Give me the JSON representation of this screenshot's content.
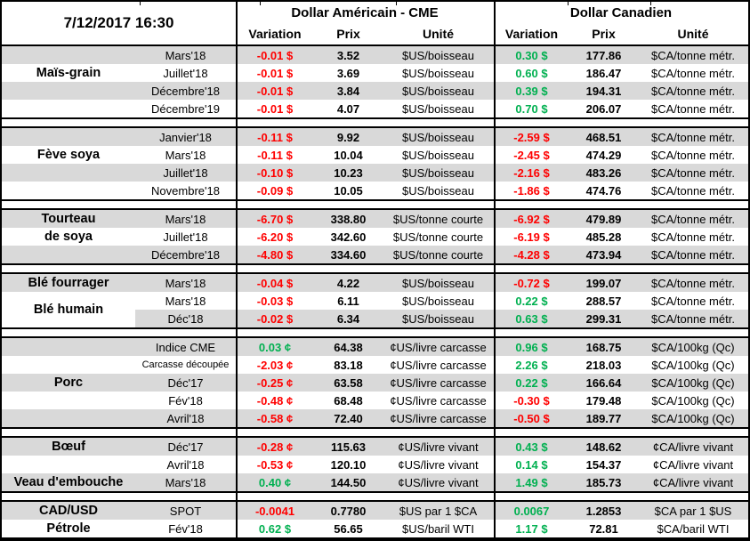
{
  "colors": {
    "negative": "#FF0000",
    "positive": "#00B050",
    "row_stripe": "#D9D9D9",
    "border": "#000000"
  },
  "chart_data": {
    "type": "table",
    "header": {
      "date": "7/12/2017 16:30",
      "us_title": "Dollar Américain - CME",
      "ca_title": "Dollar Canadien",
      "cols": [
        "Variation",
        "Prix",
        "Unité"
      ]
    },
    "groups": [
      {
        "rows": [
          {
            "label": "",
            "contract": "Mars'18",
            "us": {
              "variation": "-0.01 $",
              "prix": "3.52",
              "unite": "$US/boisseau"
            },
            "ca": {
              "variation": "0.30 $",
              "prix": "177.86",
              "unite": "$CA/tonne métr."
            }
          },
          {
            "label": "Maïs-grain",
            "contract": "Juillet'18",
            "us": {
              "variation": "-0.01 $",
              "prix": "3.69",
              "unite": "$US/boisseau"
            },
            "ca": {
              "variation": "0.60 $",
              "prix": "186.47",
              "unite": "$CA/tonne métr."
            }
          },
          {
            "label": "",
            "contract": "Décembre'18",
            "us": {
              "variation": "-0.01 $",
              "prix": "3.84",
              "unite": "$US/boisseau"
            },
            "ca": {
              "variation": "0.39 $",
              "prix": "194.31",
              "unite": "$CA/tonne métr."
            }
          },
          {
            "label": "",
            "contract": "Décembre'19",
            "us": {
              "variation": "-0.01 $",
              "prix": "4.07",
              "unite": "$US/boisseau"
            },
            "ca": {
              "variation": "0.70 $",
              "prix": "206.07",
              "unite": "$CA/tonne métr."
            }
          }
        ]
      },
      {
        "rows": [
          {
            "label": "",
            "contract": "Janvier'18",
            "us": {
              "variation": "-0.11 $",
              "prix": "9.92",
              "unite": "$US/boisseau"
            },
            "ca": {
              "variation": "-2.59 $",
              "prix": "468.51",
              "unite": "$CA/tonne métr."
            }
          },
          {
            "label": "Fève soya",
            "contract": "Mars'18",
            "us": {
              "variation": "-0.11 $",
              "prix": "10.04",
              "unite": "$US/boisseau"
            },
            "ca": {
              "variation": "-2.45 $",
              "prix": "474.29",
              "unite": "$CA/tonne métr."
            }
          },
          {
            "label": "",
            "contract": "Juillet'18",
            "us": {
              "variation": "-0.10 $",
              "prix": "10.23",
              "unite": "$US/boisseau"
            },
            "ca": {
              "variation": "-2.16 $",
              "prix": "483.26",
              "unite": "$CA/tonne métr."
            }
          },
          {
            "label": "",
            "contract": "Novembre'18",
            "us": {
              "variation": "-0.09 $",
              "prix": "10.05",
              "unite": "$US/boisseau"
            },
            "ca": {
              "variation": "-1.86 $",
              "prix": "474.76",
              "unite": "$CA/tonne métr."
            }
          }
        ]
      },
      {
        "rows": [
          {
            "label": "Tourteau",
            "contract": "Mars'18",
            "us": {
              "variation": "-6.70 $",
              "prix": "338.80",
              "unite": "$US/tonne courte"
            },
            "ca": {
              "variation": "-6.92 $",
              "prix": "479.89",
              "unite": "$CA/tonne métr."
            }
          },
          {
            "label": "de soya",
            "contract": "Juillet'18",
            "us": {
              "variation": "-6.20 $",
              "prix": "342.60",
              "unite": "$US/tonne courte"
            },
            "ca": {
              "variation": "-6.19 $",
              "prix": "485.28",
              "unite": "$CA/tonne métr."
            }
          },
          {
            "label": "",
            "contract": "Décembre'18",
            "us": {
              "variation": "-4.80 $",
              "prix": "334.60",
              "unite": "$US/tonne courte"
            },
            "ca": {
              "variation": "-4.28 $",
              "prix": "473.94",
              "unite": "$CA/tonne métr."
            }
          }
        ]
      },
      {
        "rows": [
          {
            "label": "Blé fourrager",
            "contract": "Mars'18",
            "us": {
              "variation": "-0.04 $",
              "prix": "4.22",
              "unite": "$US/boisseau"
            },
            "ca": {
              "variation": "-0.72 $",
              "prix": "199.07",
              "unite": "$CA/tonne métr."
            }
          },
          {
            "label": "Blé humain",
            "label_span": 2,
            "contract": "Mars'18",
            "us": {
              "variation": "-0.03 $",
              "prix": "6.11",
              "unite": "$US/boisseau"
            },
            "ca": {
              "variation": "0.22 $",
              "prix": "288.57",
              "unite": "$CA/tonne métr."
            }
          },
          {
            "label": "",
            "contract": "Déc'18",
            "us": {
              "variation": "-0.02 $",
              "prix": "6.34",
              "unite": "$US/boisseau"
            },
            "ca": {
              "variation": "0.63 $",
              "prix": "299.31",
              "unite": "$CA/tonne métr."
            }
          }
        ]
      },
      {
        "rows": [
          {
            "label": "",
            "contract": "Indice CME",
            "us": {
              "variation": "0.03 ¢",
              "prix": "64.38",
              "unite": "¢US/livre carcasse"
            },
            "ca": {
              "variation": "0.96 $",
              "prix": "168.75",
              "unite": "$CA/100kg (Qc)"
            }
          },
          {
            "label": "",
            "contract": "Carcasse découpée",
            "us": {
              "variation": "-2.03 ¢",
              "prix": "83.18",
              "unite": "¢US/livre carcasse"
            },
            "ca": {
              "variation": "2.26 $",
              "prix": "218.03",
              "unite": "$CA/100kg (Qc)"
            }
          },
          {
            "label": "Porc",
            "contract": "Déc'17",
            "us": {
              "variation": "-0.25 ¢",
              "prix": "63.58",
              "unite": "¢US/livre carcasse"
            },
            "ca": {
              "variation": "0.22 $",
              "prix": "166.64",
              "unite": "$CA/100kg (Qc)"
            }
          },
          {
            "label": "",
            "contract": "Fév'18",
            "us": {
              "variation": "-0.48 ¢",
              "prix": "68.48",
              "unite": "¢US/livre carcasse"
            },
            "ca": {
              "variation": "-0.30 $",
              "prix": "179.48",
              "unite": "$CA/100kg (Qc)"
            }
          },
          {
            "label": "",
            "contract": "Avril'18",
            "us": {
              "variation": "-0.58 ¢",
              "prix": "72.40",
              "unite": "¢US/livre carcasse"
            },
            "ca": {
              "variation": "-0.50 $",
              "prix": "189.77",
              "unite": "$CA/100kg (Qc)"
            }
          }
        ]
      },
      {
        "rows": [
          {
            "label": "Bœuf",
            "contract": "Déc'17",
            "us": {
              "variation": "-0.28 ¢",
              "prix": "115.63",
              "unite": "¢US/livre vivant"
            },
            "ca": {
              "variation": "0.43 $",
              "prix": "148.62",
              "unite": "¢CA/livre vivant"
            }
          },
          {
            "label": "",
            "contract": "Avril'18",
            "us": {
              "variation": "-0.53 ¢",
              "prix": "120.10",
              "unite": "¢US/livre vivant"
            },
            "ca": {
              "variation": "0.14 $",
              "prix": "154.37",
              "unite": "¢CA/livre vivant"
            }
          },
          {
            "label": "Veau d'embouche",
            "contract": "Mars'18",
            "us": {
              "variation": "0.40 ¢",
              "prix": "144.50",
              "unite": "¢US/livre vivant"
            },
            "ca": {
              "variation": "1.49 $",
              "prix": "185.73",
              "unite": "¢CA/livre vivant"
            }
          }
        ]
      },
      {
        "rows": [
          {
            "label": "CAD/USD",
            "contract": "SPOT",
            "us": {
              "variation": "-0.0041",
              "prix": "0.7780",
              "unite": "$US par 1 $CA"
            },
            "ca": {
              "variation": "0.0067",
              "prix": "1.2853",
              "unite": "$CA par 1 $US"
            }
          },
          {
            "label": "Pétrole",
            "contract": "Fév'18",
            "us": {
              "variation": "0.62 $",
              "prix": "56.65",
              "unite": "$US/baril WTI"
            },
            "ca": {
              "variation": "1.17 $",
              "prix": "72.81",
              "unite": "$CA/baril WTI"
            }
          }
        ]
      }
    ]
  }
}
